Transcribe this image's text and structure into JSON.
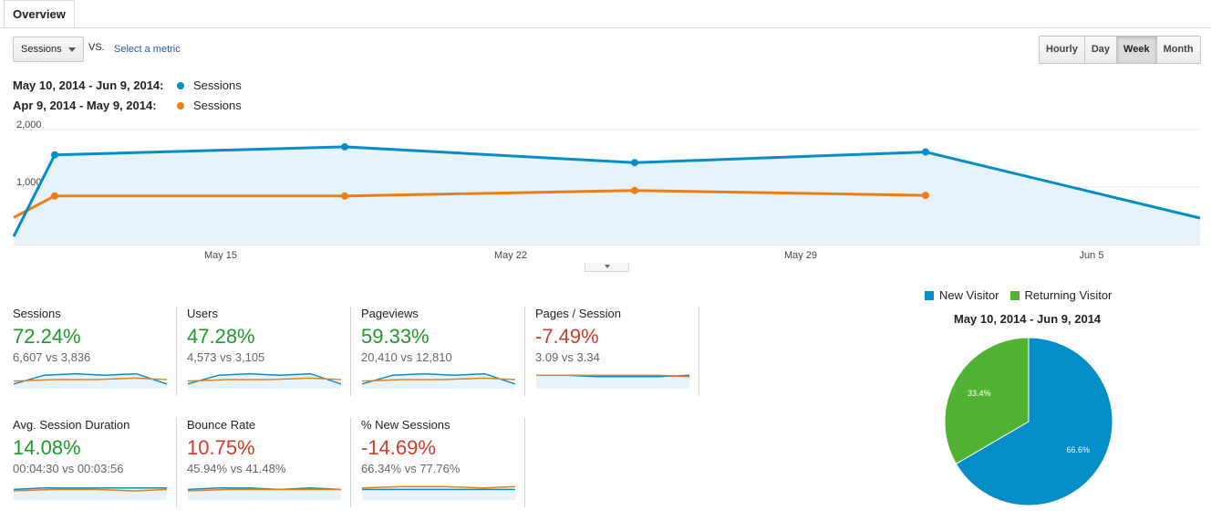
{
  "tab": {
    "label": "Overview"
  },
  "controls": {
    "metric_select": "Sessions",
    "vs_label": "VS.",
    "select_metric_link": "Select a metric",
    "granularity": [
      {
        "label": "Hourly",
        "active": false
      },
      {
        "label": "Day",
        "active": false
      },
      {
        "label": "Week",
        "active": true
      },
      {
        "label": "Month",
        "active": false
      }
    ]
  },
  "legend": [
    {
      "date_range": "May 10, 2014 - Jun 9, 2014:",
      "metric": "Sessions",
      "color": "#058dc7"
    },
    {
      "date_range": "Apr 9, 2014 - May 9, 2014:",
      "metric": "Sessions",
      "color": "#ed7e17"
    }
  ],
  "chart_data": {
    "type": "area",
    "x_tick_labels": [
      "May 15",
      "May 22",
      "May 29",
      "Jun 5"
    ],
    "y_tick_labels": [
      "2,000",
      "1,000"
    ],
    "ylim": [
      0,
      2000
    ],
    "grid": true,
    "series": [
      {
        "name": "Sessions",
        "period": "May 10, 2014 - Jun 9, 2014",
        "color": "#058dc7",
        "x": [
          0,
          1,
          2,
          3,
          4,
          5
        ],
        "values": [
          140,
          1560,
          1700,
          1425,
          1610,
          460
        ]
      },
      {
        "name": "Sessions",
        "period": "Apr 9, 2014 - May 9, 2014",
        "color": "#ed7e17",
        "x": [
          0,
          1,
          2,
          3,
          4
        ],
        "values": [
          470,
          845,
          845,
          940,
          855
        ]
      }
    ]
  },
  "metrics": [
    {
      "title": "Sessions",
      "pct": "72.24%",
      "trend": "green",
      "compare": "6,607 vs 3,836",
      "spark_a": [
        2,
        8,
        9,
        8,
        9,
        2
      ],
      "spark_b": [
        4,
        5,
        5,
        6,
        5
      ]
    },
    {
      "title": "Users",
      "pct": "47.28%",
      "trend": "green",
      "compare": "4,573 vs 3,105",
      "spark_a": [
        2,
        8,
        9,
        8,
        9,
        2
      ],
      "spark_b": [
        4,
        5,
        5,
        6,
        5
      ]
    },
    {
      "title": "Pageviews",
      "pct": "59.33%",
      "trend": "green",
      "compare": "20,410 vs 12,810",
      "spark_a": [
        2,
        8,
        9,
        8,
        9,
        2
      ],
      "spark_b": [
        4,
        5,
        5,
        6,
        5
      ]
    },
    {
      "title": "Pages / Session",
      "pct": "-7.49%",
      "trend": "red",
      "compare": "3.09 vs 3.34",
      "spark_a": [
        8,
        8,
        7,
        7,
        7,
        8
      ],
      "spark_b": [
        8,
        8,
        8,
        8,
        7
      ]
    },
    {
      "title": "Avg. Session Duration",
      "pct": "14.08%",
      "trend": "green",
      "compare": "00:04:30 vs 00:03:56",
      "spark_a": [
        6,
        7,
        7,
        7,
        7,
        7
      ],
      "spark_b": [
        5,
        6,
        6,
        5,
        6
      ]
    },
    {
      "title": "Bounce Rate",
      "pct": "10.75%",
      "trend": "red",
      "compare": "45.94% vs 41.48%",
      "spark_a": [
        6,
        7,
        7,
        6,
        7,
        6
      ],
      "spark_b": [
        5,
        6,
        6,
        6,
        6
      ]
    },
    {
      "title": "% New Sessions",
      "pct": "-14.69%",
      "trend": "red",
      "compare": "66.34% vs 77.76%",
      "spark_a": [
        6,
        6,
        6,
        6,
        6,
        6
      ],
      "spark_b": [
        7,
        8,
        8,
        7,
        8
      ]
    }
  ],
  "pie": {
    "legend": [
      {
        "label": "New Visitor",
        "color": "#058dc7"
      },
      {
        "label": "Returning Visitor",
        "color": "#50b432"
      }
    ],
    "title": "May 10, 2014 - Jun 9, 2014",
    "slices": [
      {
        "label": "New Visitor",
        "value": 66.6,
        "text": "66.6%",
        "color": "#058dc7"
      },
      {
        "label": "Returning Visitor",
        "value": 33.4,
        "text": "33.4%",
        "color": "#50b432"
      }
    ]
  }
}
